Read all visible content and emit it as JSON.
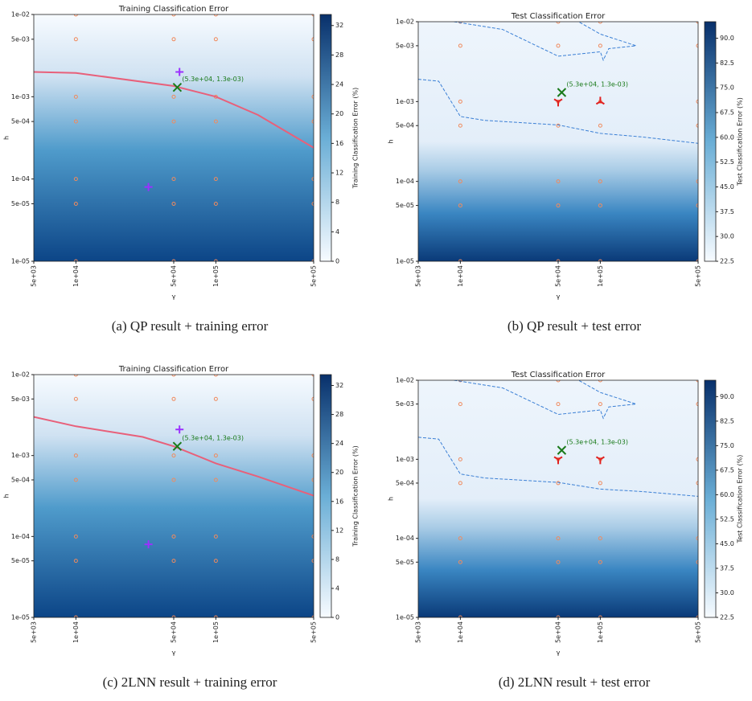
{
  "chart_data": [
    {
      "type": "contour",
      "title": "Training Classification Error",
      "xlabel": "γ",
      "ylabel": "h",
      "caption": "(a) QP result + training error",
      "xscale": "log",
      "yscale": "log",
      "xlim": [
        5000,
        500000
      ],
      "ylim": [
        1e-05,
        0.01
      ],
      "xticks": [
        {
          "value": 5000,
          "label": "5e+03"
        },
        {
          "value": 10000,
          "label": "1e+04"
        },
        {
          "value": 50000,
          "label": "5e+04"
        },
        {
          "value": 100000,
          "label": "1e+05"
        },
        {
          "value": 500000,
          "label": "5e+05"
        }
      ],
      "yticks": [
        {
          "value": 1e-05,
          "label": "1e-05"
        },
        {
          "value": 5e-05,
          "label": "5e-05"
        },
        {
          "value": 0.0001,
          "label": "1e-04"
        },
        {
          "value": 0.0005,
          "label": "5e-04"
        },
        {
          "value": 0.001,
          "label": "1e-03"
        },
        {
          "value": 0.005,
          "label": "5e-03"
        },
        {
          "value": 0.01,
          "label": "1e-02"
        }
      ],
      "background": "training",
      "sample_points": {
        "color": "#f08a5d",
        "x": [
          10000,
          50000,
          100000,
          500000
        ],
        "y": [
          0.01,
          0.005,
          0.001,
          0.0005,
          0.0001,
          5e-05,
          1e-05
        ]
      },
      "curves": [
        {
          "color": "#e8607a",
          "style": "solid",
          "x": [
            5000,
            10000,
            50000,
            100000,
            200000,
            500000
          ],
          "y": [
            0.002,
            0.00195,
            0.00135,
            0.001,
            0.0006,
            0.00024
          ]
        }
      ],
      "markers": [
        {
          "shape": "plus",
          "color": "#9b30ff",
          "x": [
            55000,
            33000
          ],
          "y": [
            0.002,
            8e-05
          ]
        },
        {
          "shape": "x",
          "color": "#1a7a1a",
          "x": [
            53000
          ],
          "y": [
            0.0013
          ],
          "labels": [
            "(5.3e+04, 1.3e-03)"
          ]
        }
      ],
      "colorbar": {
        "label": "Training Classification Error (%)",
        "ylim": [
          0,
          33.5
        ],
        "yticks": [
          0,
          4,
          8,
          12,
          16,
          20,
          24,
          28,
          32
        ]
      }
    },
    {
      "type": "contour",
      "title": "Test Classification Error",
      "xlabel": "γ",
      "ylabel": "h",
      "caption": "(b) QP result + test error",
      "xscale": "log",
      "yscale": "log",
      "xlim": [
        5000,
        500000
      ],
      "ylim": [
        1e-05,
        0.01
      ],
      "xticks": [
        {
          "value": 5000,
          "label": "5e+03"
        },
        {
          "value": 10000,
          "label": "1e+04"
        },
        {
          "value": 50000,
          "label": "5e+04"
        },
        {
          "value": 100000,
          "label": "1e+05"
        },
        {
          "value": 500000,
          "label": "5e+05"
        }
      ],
      "yticks": [
        {
          "value": 1e-05,
          "label": "1e-05"
        },
        {
          "value": 5e-05,
          "label": "5e-05"
        },
        {
          "value": 0.0001,
          "label": "1e-04"
        },
        {
          "value": 0.0005,
          "label": "5e-04"
        },
        {
          "value": 0.001,
          "label": "1e-03"
        },
        {
          "value": 0.005,
          "label": "5e-03"
        },
        {
          "value": 0.01,
          "label": "1e-02"
        }
      ],
      "background": "test",
      "sample_points": {
        "color": "#f08a5d",
        "x": [
          10000,
          50000,
          100000,
          500000
        ],
        "y": [
          0.01,
          0.005,
          0.001,
          0.0005,
          0.0001,
          5e-05,
          1e-05
        ]
      },
      "curves": [
        {
          "color": "#3a7fd5",
          "style": "dashed",
          "x": [
            9000,
            20000,
            50000,
            100000,
            105000,
            115000,
            180000,
            100000,
            70000
          ],
          "y": [
            0.01,
            0.008,
            0.0037,
            0.0042,
            0.0033,
            0.0046,
            0.005,
            0.007,
            0.01
          ]
        },
        {
          "color": "#3a7fd5",
          "style": "dashed",
          "x": [
            5000,
            7000,
            10000,
            15000,
            50000,
            100000,
            200000,
            500000
          ],
          "y": [
            0.0019,
            0.0018,
            0.00065,
            0.00058,
            0.00051,
            0.0004,
            0.00036,
            0.0003
          ]
        }
      ],
      "markers": [
        {
          "shape": "tri_down",
          "color": "#e02020",
          "x": [
            50000
          ],
          "y": [
            0.001
          ]
        },
        {
          "shape": "tri_up",
          "color": "#e02020",
          "x": [
            100000
          ],
          "y": [
            0.001
          ]
        },
        {
          "shape": "x",
          "color": "#1a7a1a",
          "x": [
            53000
          ],
          "y": [
            0.0013
          ],
          "labels": [
            "(5.3e+04, 1.3e-03)"
          ]
        }
      ],
      "colorbar": {
        "label": "Test Classification Error (%)",
        "ylim": [
          22.5,
          95
        ],
        "yticks": [
          22.5,
          {
            "value": 30,
            "label": "30.0"
          },
          37.5,
          {
            "value": 45,
            "label": "45.0"
          },
          52.5,
          {
            "value": 60,
            "label": "60.0"
          },
          67.5,
          {
            "value": 75,
            "label": "75.0"
          },
          82.5,
          {
            "value": 90,
            "label": "90.0"
          }
        ]
      }
    },
    {
      "type": "contour",
      "title": "Training Classification Error",
      "xlabel": "γ",
      "ylabel": "h",
      "caption": "(c) 2LNN result + training error",
      "xscale": "log",
      "yscale": "log",
      "xlim": [
        5000,
        500000
      ],
      "ylim": [
        1e-05,
        0.01
      ],
      "xticks": [
        {
          "value": 5000,
          "label": "5e+03"
        },
        {
          "value": 10000,
          "label": "1e+04"
        },
        {
          "value": 50000,
          "label": "5e+04"
        },
        {
          "value": 100000,
          "label": "1e+05"
        },
        {
          "value": 500000,
          "label": "5e+05"
        }
      ],
      "yticks": [
        {
          "value": 1e-05,
          "label": "1e-05"
        },
        {
          "value": 5e-05,
          "label": "5e-05"
        },
        {
          "value": 0.0001,
          "label": "1e-04"
        },
        {
          "value": 0.0005,
          "label": "5e-04"
        },
        {
          "value": 0.001,
          "label": "1e-03"
        },
        {
          "value": 0.005,
          "label": "5e-03"
        },
        {
          "value": 0.01,
          "label": "1e-02"
        }
      ],
      "background": "training",
      "sample_points": {
        "color": "#f08a5d",
        "x": [
          10000,
          50000,
          100000,
          500000
        ],
        "y": [
          0.01,
          0.005,
          0.001,
          0.0005,
          0.0001,
          5e-05,
          1e-05
        ]
      },
      "curves": [
        {
          "color": "#e8607a",
          "style": "solid",
          "x": [
            5000,
            10000,
            30000,
            50000,
            100000,
            200000,
            500000
          ],
          "y": [
            0.003,
            0.0023,
            0.0017,
            0.0013,
            0.0008,
            0.00055,
            0.00032
          ]
        }
      ],
      "markers": [
        {
          "shape": "plus",
          "color": "#9b30ff",
          "x": [
            55000,
            33000
          ],
          "y": [
            0.0021,
            8e-05
          ]
        },
        {
          "shape": "x",
          "color": "#1a7a1a",
          "x": [
            53000
          ],
          "y": [
            0.0013
          ],
          "labels": [
            "(5.3e+04, 1.3e-03)"
          ]
        }
      ],
      "colorbar": {
        "label": "Training Classification Error (%)",
        "ylim": [
          0,
          33.5
        ],
        "yticks": [
          0,
          4,
          8,
          12,
          16,
          20,
          24,
          28,
          32
        ]
      }
    },
    {
      "type": "contour",
      "title": "Test Classification Error",
      "xlabel": "γ",
      "ylabel": "h",
      "caption": "(d) 2LNN result + test error",
      "xscale": "log",
      "yscale": "log",
      "xlim": [
        5000,
        500000
      ],
      "ylim": [
        1e-05,
        0.01
      ],
      "xticks": [
        {
          "value": 5000,
          "label": "5e+03"
        },
        {
          "value": 10000,
          "label": "1e+04"
        },
        {
          "value": 50000,
          "label": "5e+04"
        },
        {
          "value": 100000,
          "label": "1e+05"
        },
        {
          "value": 500000,
          "label": "5e+05"
        }
      ],
      "yticks": [
        {
          "value": 1e-05,
          "label": "1e-05"
        },
        {
          "value": 5e-05,
          "label": "5e-05"
        },
        {
          "value": 0.0001,
          "label": "1e-04"
        },
        {
          "value": 0.0005,
          "label": "5e-04"
        },
        {
          "value": 0.001,
          "label": "1e-03"
        },
        {
          "value": 0.005,
          "label": "5e-03"
        },
        {
          "value": 0.01,
          "label": "1e-02"
        }
      ],
      "background": "test",
      "sample_points": {
        "color": "#f08a5d",
        "x": [
          10000,
          50000,
          100000,
          500000
        ],
        "y": [
          0.01,
          0.005,
          0.001,
          0.0005,
          0.0001,
          5e-05,
          1e-05
        ]
      },
      "curves": [
        {
          "color": "#3a7fd5",
          "style": "dashed",
          "x": [
            9000,
            20000,
            50000,
            100000,
            105000,
            115000,
            180000,
            100000,
            70000
          ],
          "y": [
            0.01,
            0.008,
            0.0037,
            0.0042,
            0.0033,
            0.0046,
            0.005,
            0.007,
            0.01
          ]
        },
        {
          "color": "#3a7fd5",
          "style": "dashed",
          "x": [
            5000,
            7000,
            10000,
            15000,
            50000,
            100000,
            200000,
            500000
          ],
          "y": [
            0.0019,
            0.0018,
            0.00065,
            0.00058,
            0.00051,
            0.00042,
            0.00039,
            0.00034
          ]
        }
      ],
      "markers": [
        {
          "shape": "tri_down",
          "color": "#e02020",
          "x": [
            50000,
            100000
          ],
          "y": [
            0.001,
            0.001
          ]
        },
        {
          "shape": "x",
          "color": "#1a7a1a",
          "x": [
            53000
          ],
          "y": [
            0.0013
          ],
          "labels": [
            "(5.3e+04, 1.3e-03)"
          ]
        }
      ],
      "colorbar": {
        "label": "Test Classification Error (%)",
        "ylim": [
          22.5,
          95
        ],
        "yticks": [
          22.5,
          {
            "value": 30,
            "label": "30.0"
          },
          37.5,
          {
            "value": 45,
            "label": "45.0"
          },
          52.5,
          {
            "value": 60,
            "label": "60.0"
          },
          67.5,
          {
            "value": 75,
            "label": "75.0"
          },
          82.5,
          {
            "value": 90,
            "label": "90.0"
          }
        ]
      }
    }
  ]
}
